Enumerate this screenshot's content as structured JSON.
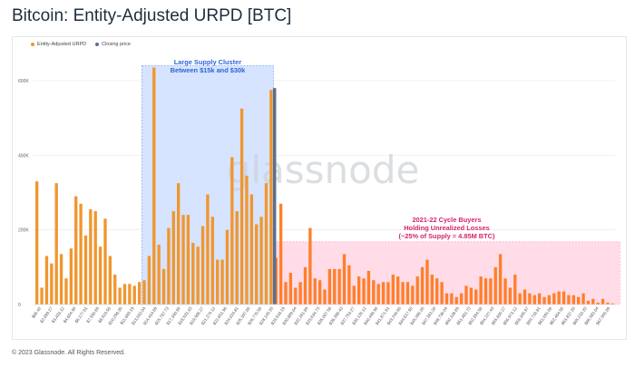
{
  "title": "Bitcoin: Entity-Adjusted URPD [BTC]",
  "footer": "© 2023 Glassnode. All Rights Reserved.",
  "watermark": "glassnode",
  "colors": {
    "bar": "#f0962f",
    "bar_highlight": "#ff7f2a",
    "closing": "#5b6f8f",
    "cluster_fill": "#cfe0ff",
    "loss_fill": "#ffd6e4",
    "cluster_text": "#2f63d8",
    "loss_text": "#d6246e",
    "grid": "#e9ebee"
  },
  "chart_data": {
    "type": "bar",
    "legend": [
      {
        "name": "Entity-Adjusted URPD",
        "color": "#f0962f"
      },
      {
        "name": "Closing price",
        "color": "#5b6f8f"
      }
    ],
    "ylim": [
      0,
      680000
    ],
    "y_ticks": [
      {
        "value": 0,
        "label": "0"
      },
      {
        "value": 200000,
        "label": "200K"
      },
      {
        "value": 400000,
        "label": "400K"
      },
      {
        "value": 600000,
        "label": "600K"
      }
    ],
    "x_tick_labels": [
      "$66.42",
      "$2,089.27",
      "$3,433.12",
      "$4,604.96",
      "$6,177.81",
      "$7,550.65",
      "$8,923.50",
      "$10,296.35",
      "$11,669.19",
      "$13,042.04",
      "$14,414.89",
      "$15,787.73",
      "$17,160.58",
      "$18,533.43",
      "$19,906.27",
      "$21,279.12",
      "$22,651.96",
      "$24,024.81",
      "$25,397.66",
      "$26,770.50",
      "$28,143.35",
      "$29,516.19",
      "$30,889.04",
      "$32,261.89",
      "$33,634.73",
      "$35,007.58",
      "$36,380.43",
      "$37,753.27",
      "$39,126.12",
      "$40,498.96",
      "$41,871.81",
      "$43,244.66",
      "$44,617.50",
      "$45,990.35",
      "$47,363.20",
      "$48,736.04",
      "$50,108.89",
      "$51,481.73",
      "$52,854.58",
      "$54,227.43",
      "$55,600.27",
      "$56,973.12",
      "$58,345.97",
      "$59,718.81",
      "$61,091.66",
      "$62,464.50",
      "$63,837.35",
      "$65,210.20",
      "$66,583.04",
      "$67,955.89"
    ],
    "values": [
      330000,
      45000,
      130000,
      110000,
      325000,
      135000,
      70000,
      150000,
      290000,
      270000,
      185000,
      255000,
      250000,
      155000,
      230000,
      130000,
      80000,
      45000,
      55000,
      55000,
      50000,
      60000,
      65000,
      130000,
      635000,
      160000,
      95000,
      205000,
      250000,
      325000,
      240000,
      240000,
      165000,
      155000,
      210000,
      295000,
      235000,
      120000,
      120000,
      200000,
      395000,
      250000,
      525000,
      345000,
      295000,
      215000,
      235000,
      325000,
      575000,
      125000,
      270000,
      60000,
      85000,
      45000,
      60000,
      100000,
      205000,
      70000,
      65000,
      40000,
      95000,
      95000,
      95000,
      135000,
      105000,
      50000,
      75000,
      70000,
      90000,
      65000,
      55000,
      60000,
      60000,
      80000,
      75000,
      60000,
      60000,
      50000,
      75000,
      100000,
      120000,
      80000,
      70000,
      60000,
      30000,
      30000,
      20000,
      30000,
      50000,
      45000,
      40000,
      75000,
      70000,
      70000,
      100000,
      135000,
      70000,
      45000,
      80000,
      30000,
      40000,
      30000,
      25000,
      30000,
      20000,
      25000,
      30000,
      35000,
      35000,
      25000,
      25000,
      20000,
      30000,
      10000,
      15000,
      5000,
      15000,
      5000,
      3000
    ],
    "closing_price_value": 580000,
    "closing_price_index": 48,
    "annotations": [
      {
        "kind": "cluster",
        "start_index": 22,
        "end_index": 48,
        "top_value": 640000,
        "lines": [
          "Large Supply Cluster",
          "Between $15k and $30k"
        ]
      },
      {
        "kind": "losses",
        "start_index": 49,
        "end_index": 119,
        "top_value": 168000,
        "lines": [
          "2021-22 Cycle Buyers",
          "Holding Unrealized Losses",
          "(~25% of Supply = 4.85M BTC)"
        ]
      }
    ]
  }
}
